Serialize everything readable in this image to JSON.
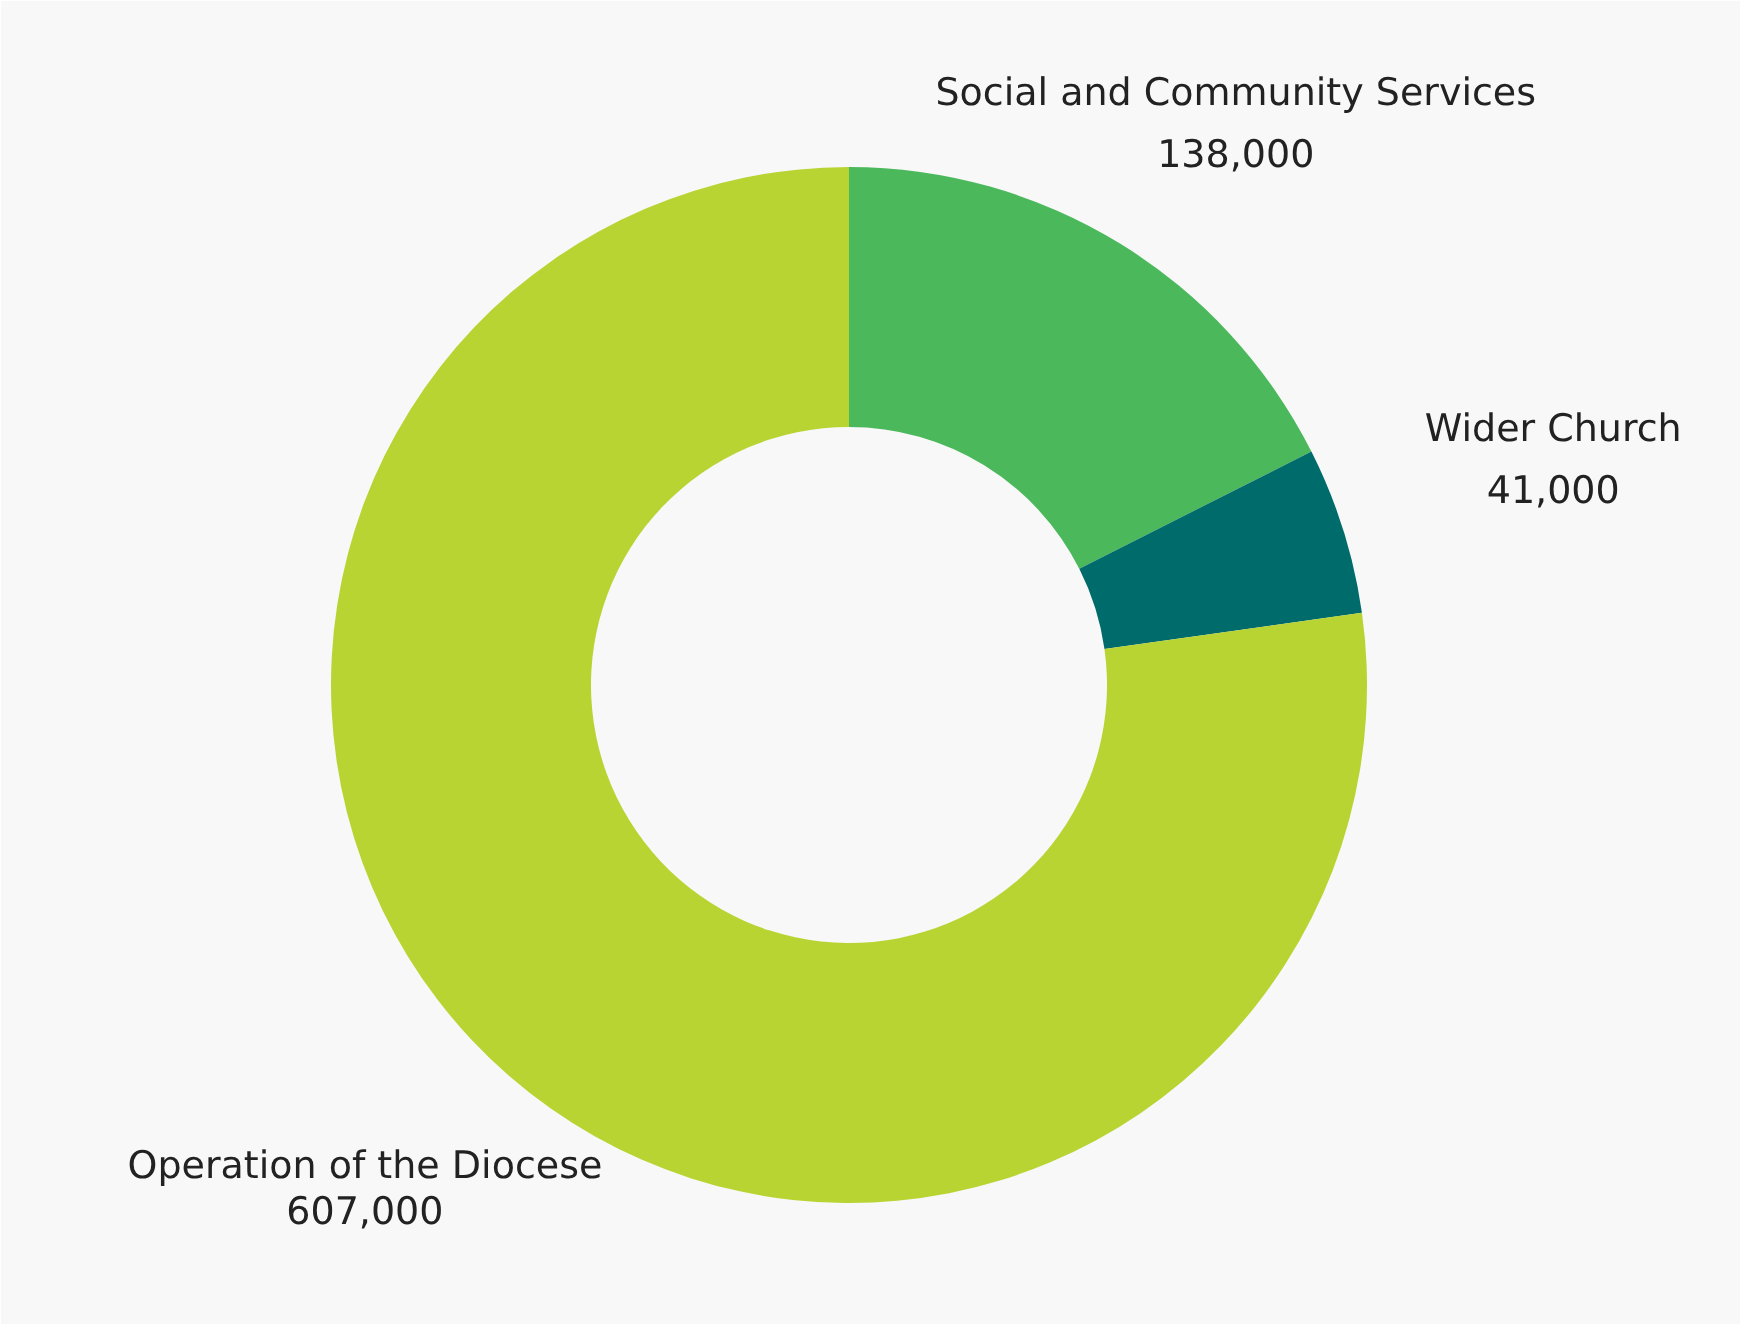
{
  "chart_data": {
    "type": "donut",
    "categories": [
      "Social and Community Services",
      "Wider Church",
      "Operation of the Diocese"
    ],
    "values": [
      138000,
      41000,
      607000
    ],
    "colors": [
      "#4cb85c",
      "#006b6b",
      "#b8d433"
    ],
    "value_labels": [
      "138,000",
      "41,000",
      "607,000"
    ]
  }
}
